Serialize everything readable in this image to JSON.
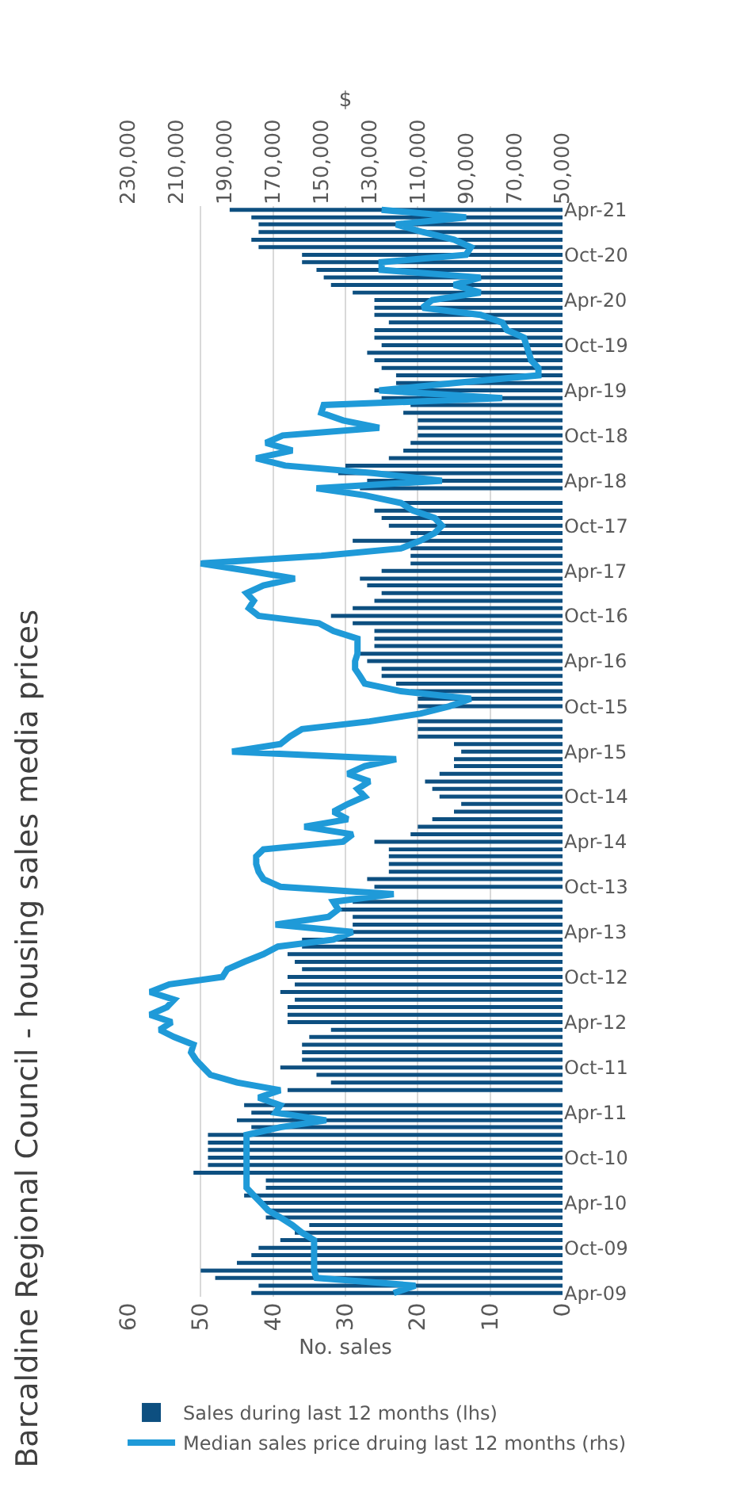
{
  "chart_data": {
    "type": "bar",
    "orientation": "horizontal",
    "title": "Barcaldine Regional Council - housing sales media prices",
    "xlabel": "No. sales",
    "x2label": "$",
    "x": [
      "2009-04",
      "2009-05",
      "2009-06",
      "2009-07",
      "2009-08",
      "2009-09",
      "2009-10",
      "2009-11",
      "2009-12",
      "2010-01",
      "2010-02",
      "2010-03",
      "2010-04",
      "2010-05",
      "2010-06",
      "2010-07",
      "2010-08",
      "2010-09",
      "2010-10",
      "2010-11",
      "2010-12",
      "2011-01",
      "2011-02",
      "2011-03",
      "2011-04",
      "2011-05",
      "2011-06",
      "2011-07",
      "2011-08",
      "2011-09",
      "2011-10",
      "2011-11",
      "2011-12",
      "2012-01",
      "2012-02",
      "2012-03",
      "2012-04",
      "2012-05",
      "2012-06",
      "2012-07",
      "2012-08",
      "2012-09",
      "2012-10",
      "2012-11",
      "2012-12",
      "2013-01",
      "2013-02",
      "2013-03",
      "2013-04",
      "2013-05",
      "2013-06",
      "2013-07",
      "2013-08",
      "2013-09",
      "2013-10",
      "2013-11",
      "2013-12",
      "2014-01",
      "2014-02",
      "2014-03",
      "2014-04",
      "2014-05",
      "2014-06",
      "2014-07",
      "2014-08",
      "2014-09",
      "2014-10",
      "2014-11",
      "2014-12",
      "2015-01",
      "2015-02",
      "2015-03",
      "2015-04",
      "2015-05",
      "2015-06",
      "2015-07",
      "2015-08",
      "2015-09",
      "2015-10",
      "2015-11",
      "2015-12",
      "2016-01",
      "2016-02",
      "2016-03",
      "2016-04",
      "2016-05",
      "2016-06",
      "2016-07",
      "2016-08",
      "2016-09",
      "2016-10",
      "2016-11",
      "2016-12",
      "2017-01",
      "2017-02",
      "2017-03",
      "2017-04",
      "2017-05",
      "2017-06",
      "2017-07",
      "2017-08",
      "2017-09",
      "2017-10",
      "2017-11",
      "2017-12",
      "2018-01",
      "2018-02",
      "2018-03",
      "2018-04",
      "2018-05",
      "2018-06",
      "2018-07",
      "2018-08",
      "2018-09",
      "2018-10",
      "2018-11",
      "2018-12",
      "2019-01",
      "2019-02",
      "2019-03",
      "2019-04",
      "2019-05",
      "2019-06",
      "2019-07",
      "2019-08",
      "2019-09",
      "2019-10",
      "2019-11",
      "2019-12",
      "2020-01",
      "2020-02",
      "2020-03",
      "2020-04",
      "2020-05",
      "2020-06",
      "2020-07",
      "2020-08",
      "2020-09",
      "2020-10",
      "2020-11",
      "2020-12",
      "2021-01",
      "2021-02",
      "2021-03",
      "2021-04"
    ],
    "series": [
      {
        "name": "Sales during last 12 months (lhs)",
        "color": "#0d4f80",
        "values": [
          43,
          42,
          48,
          50,
          45,
          43,
          42,
          39,
          37,
          35,
          41,
          41,
          42,
          44,
          41,
          41,
          51,
          49,
          49,
          49,
          49,
          49,
          43,
          45,
          43,
          44,
          null,
          38,
          32,
          34,
          39,
          36,
          36,
          36,
          35,
          32,
          38,
          38,
          38,
          37,
          39,
          37,
          38,
          36,
          37,
          38,
          36,
          36,
          29,
          29,
          29,
          31,
          29,
          null,
          26,
          27,
          24,
          24,
          24,
          24,
          26,
          21,
          20,
          18,
          15,
          14,
          17,
          18,
          19,
          17,
          15,
          15,
          14,
          15,
          20,
          20,
          20,
          null,
          20,
          20,
          21,
          23,
          25,
          25,
          27,
          28,
          26,
          26,
          26,
          29,
          32,
          29,
          26,
          25,
          27,
          28,
          25,
          21,
          21,
          21,
          29,
          21,
          24,
          25,
          26,
          22,
          null,
          28,
          27,
          31,
          30,
          24,
          22,
          21,
          20,
          20,
          20,
          22,
          21,
          25,
          26,
          23,
          23,
          25,
          26,
          27,
          25,
          26,
          26,
          24,
          26,
          26,
          26,
          29,
          32,
          33,
          34,
          36,
          36,
          42,
          43,
          42,
          42,
          43,
          46
        ]
      },
      {
        "name": "Median sales price druing last 12 months (rhs)",
        "type": "line",
        "axis": "x2",
        "color": "#1f9ad8",
        "values": [
          120000,
          111000,
          152000,
          153000,
          153000,
          153000,
          153000,
          153000,
          158000,
          162000,
          167000,
          172000,
          175000,
          178000,
          181000,
          181000,
          181000,
          181000,
          181000,
          181000,
          181000,
          181000,
          167000,
          148000,
          169000,
          167000,
          176000,
          167000,
          185000,
          196000,
          199000,
          202000,
          204000,
          203000,
          211000,
          217000,
          212000,
          221000,
          214000,
          211000,
          221000,
          213000,
          191000,
          189000,
          182000,
          174000,
          168000,
          145000,
          137000,
          169000,
          147000,
          143000,
          145000,
          120000,
          167000,
          174000,
          176000,
          177000,
          177000,
          174000,
          141000,
          137000,
          157000,
          139000,
          145000,
          139000,
          132000,
          135000,
          130000,
          139000,
          132000,
          119000,
          187000,
          167000,
          163000,
          158000,
          130000,
          109000,
          97000,
          88000,
          117000,
          132000,
          134000,
          136000,
          136000,
          135000,
          135000,
          135000,
          145000,
          151000,
          176000,
          180000,
          178000,
          181000,
          174000,
          161000,
          180000,
          200000,
          150000,
          117000,
          109000,
          103000,
          100000,
          103000,
          112000,
          117000,
          132000,
          152000,
          100000,
          128000,
          165000,
          177000,
          162000,
          173000,
          166000,
          126000,
          141000,
          150000,
          149000,
          75000,
          126000,
          95000,
          60000,
          60000,
          63000,
          64000,
          65000,
          66000,
          73000,
          75000,
          84000,
          108000,
          104000,
          84000,
          95000,
          84000,
          125000,
          125000,
          90000,
          88000,
          95000,
          108000,
          119000,
          90000,
          125000
        ]
      }
    ],
    "ylim": [
      "2009-03-17",
      "2021-04-16"
    ],
    "yticks": [
      {
        "value": "2009-04",
        "label": "Apr-09"
      },
      {
        "value": "2009-10",
        "label": "Oct-09"
      },
      {
        "value": "2010-04",
        "label": "Apr-10"
      },
      {
        "value": "2010-10",
        "label": "Oct-10"
      },
      {
        "value": "2011-04",
        "label": "Apr-11"
      },
      {
        "value": "2011-10",
        "label": "Oct-11"
      },
      {
        "value": "2012-04",
        "label": "Apr-12"
      },
      {
        "value": "2012-10",
        "label": "Oct-12"
      },
      {
        "value": "2013-04",
        "label": "Apr-13"
      },
      {
        "value": "2013-10",
        "label": "Oct-13"
      },
      {
        "value": "2014-04",
        "label": "Apr-14"
      },
      {
        "value": "2014-10",
        "label": "Oct-14"
      },
      {
        "value": "2015-04",
        "label": "Apr-15"
      },
      {
        "value": "2015-10",
        "label": "Oct-15"
      },
      {
        "value": "2016-04",
        "label": "Apr-16"
      },
      {
        "value": "2016-10",
        "label": "Oct-16"
      },
      {
        "value": "2017-04",
        "label": "Apr-17"
      },
      {
        "value": "2017-10",
        "label": "Oct-17"
      },
      {
        "value": "2018-04",
        "label": "Apr-18"
      },
      {
        "value": "2018-10",
        "label": "Oct-18"
      },
      {
        "value": "2019-04",
        "label": "Apr-19"
      },
      {
        "value": "2019-10",
        "label": "Oct-19"
      },
      {
        "value": "2020-04",
        "label": "Apr-20"
      },
      {
        "value": "2020-10",
        "label": "Oct-20"
      },
      {
        "value": "2021-04",
        "label": "Apr-21"
      }
    ],
    "xlim": [
      60,
      0
    ],
    "xticks": [
      0,
      10,
      20,
      30,
      40,
      50,
      60
    ],
    "x2lim": [
      230000,
      50000
    ],
    "x2ticks": [
      {
        "value": 50000,
        "label": "50,000"
      },
      {
        "value": 70000,
        "label": "70,000"
      },
      {
        "value": 90000,
        "label": "90,000"
      },
      {
        "value": 110000,
        "label": "110,000"
      },
      {
        "value": 130000,
        "label": "130,000"
      },
      {
        "value": 150000,
        "label": "150,000"
      },
      {
        "value": 170000,
        "label": "170,000"
      },
      {
        "value": 190000,
        "label": "190,000"
      },
      {
        "value": 210000,
        "label": "210,000"
      },
      {
        "value": 230000,
        "label": "230,000"
      }
    ],
    "grid": "x",
    "legend": "bottom"
  }
}
